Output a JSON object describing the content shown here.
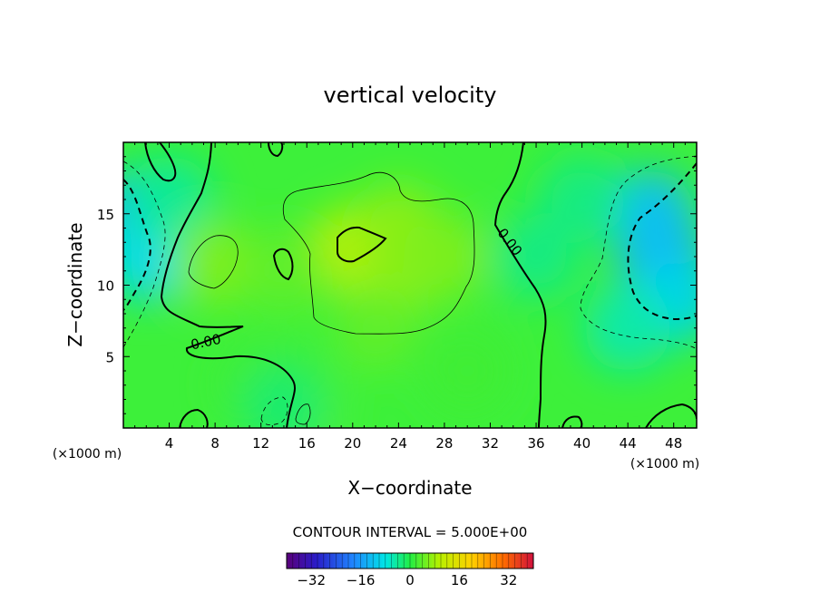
{
  "chart_data": {
    "type": "heatmap",
    "title": "vertical velocity",
    "xlabel": "X−coordinate",
    "ylabel": "Z−coordinate",
    "x_unit_left": "(×1000 m)",
    "x_unit_right": "(×1000 m)",
    "xlim": [
      0,
      50
    ],
    "ylim": [
      0,
      20
    ],
    "x_ticks": [
      4,
      8,
      12,
      16,
      20,
      24,
      28,
      32,
      36,
      40,
      44,
      48
    ],
    "y_ticks": [
      5,
      10,
      15
    ],
    "contour_interval_text": "CONTOUR INTERVAL = 5.000E+00",
    "contour_labels": [
      "0.00",
      "0.00"
    ],
    "colorbar": {
      "range": [
        -40,
        40
      ],
      "ticks": [
        -32,
        -16,
        0,
        16,
        32
      ],
      "tick_labels": [
        "−32",
        "−16",
        "0",
        "16",
        "32"
      ]
    },
    "cells": [
      {
        "x": 1,
        "z": 15,
        "w": -13
      },
      {
        "x": 2,
        "z": 12,
        "w": -9
      },
      {
        "x": 4,
        "z": 16,
        "w": -4
      },
      {
        "x": 47,
        "z": 12,
        "w": -14
      },
      {
        "x": 46,
        "z": 15,
        "w": -12
      },
      {
        "x": 48,
        "z": 9,
        "w": -10
      },
      {
        "x": 44,
        "z": 7,
        "w": -5
      },
      {
        "x": 40,
        "z": 16,
        "w": -3
      },
      {
        "x": 20,
        "z": 12.5,
        "w": 10
      },
      {
        "x": 24,
        "z": 11,
        "w": 8
      },
      {
        "x": 24,
        "z": 14,
        "w": 7
      },
      {
        "x": 28,
        "z": 12,
        "w": 6
      },
      {
        "x": 8,
        "z": 11.5,
        "w": 6
      },
      {
        "x": 14,
        "z": 11,
        "w": 4
      },
      {
        "x": 22,
        "z": 7,
        "w": 4
      },
      {
        "x": 15.5,
        "z": 1,
        "w": 3
      },
      {
        "x": 12,
        "z": 3,
        "w": 2
      },
      {
        "x": 30,
        "z": 4,
        "w": 2
      },
      {
        "x": 14,
        "z": 1.5,
        "w": -2
      },
      {
        "x": 36,
        "z": 12,
        "w": -3
      }
    ]
  }
}
